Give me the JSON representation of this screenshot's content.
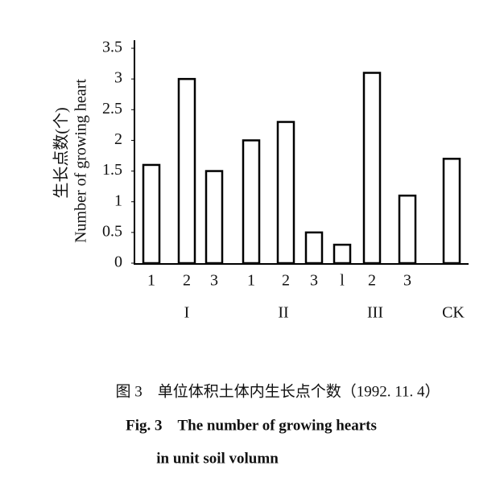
{
  "chart_data": {
    "type": "bar",
    "y_label_lines": [
      "生长点数(个)",
      "Number of growing heart"
    ],
    "categories": [
      "1",
      "2",
      "3",
      "1",
      "2",
      "3",
      "l",
      "2",
      "3",
      null
    ],
    "groups": [
      "I",
      "II",
      "III",
      "CK"
    ],
    "values": [
      1.6,
      3.0,
      1.5,
      2.0,
      2.3,
      0.5,
      0.3,
      3.1,
      1.1,
      1.7
    ],
    "color": "#ffffff",
    "edge_color": "#000000",
    "ylim": [
      0,
      3.5
    ],
    "yticks": [
      0,
      0.5,
      1,
      1.5,
      2,
      2.5,
      3,
      3.5
    ],
    "grid": false
  },
  "caption": {
    "cn": "图 3　单位体积土体内生长点个数（1992. 11. 4）",
    "en_line1": "Fig. 3　The number of growing hearts",
    "en_line2": "in unit soil volumn"
  }
}
